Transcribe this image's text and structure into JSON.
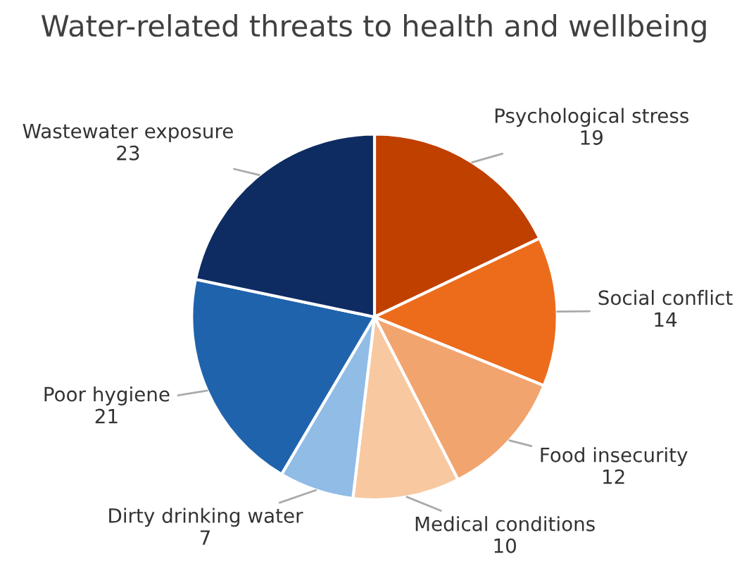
{
  "chart_data": {
    "type": "pie",
    "title": "Water-related threats to health and wellbeing",
    "categories": [
      "Psychological stress",
      "Social conflict",
      "Food insecurity",
      "Medical conditions",
      "Dirty drinking water",
      "Poor hygiene",
      "Wastewater exposure"
    ],
    "values": [
      19,
      14,
      12,
      10,
      7,
      21,
      23
    ],
    "colors": [
      "#c04000",
      "#ec6c1c",
      "#f2a46e",
      "#f8c8a0",
      "#90bce6",
      "#1f63ac",
      "#0e2c62"
    ],
    "data_labels": true,
    "legend": false
  }
}
